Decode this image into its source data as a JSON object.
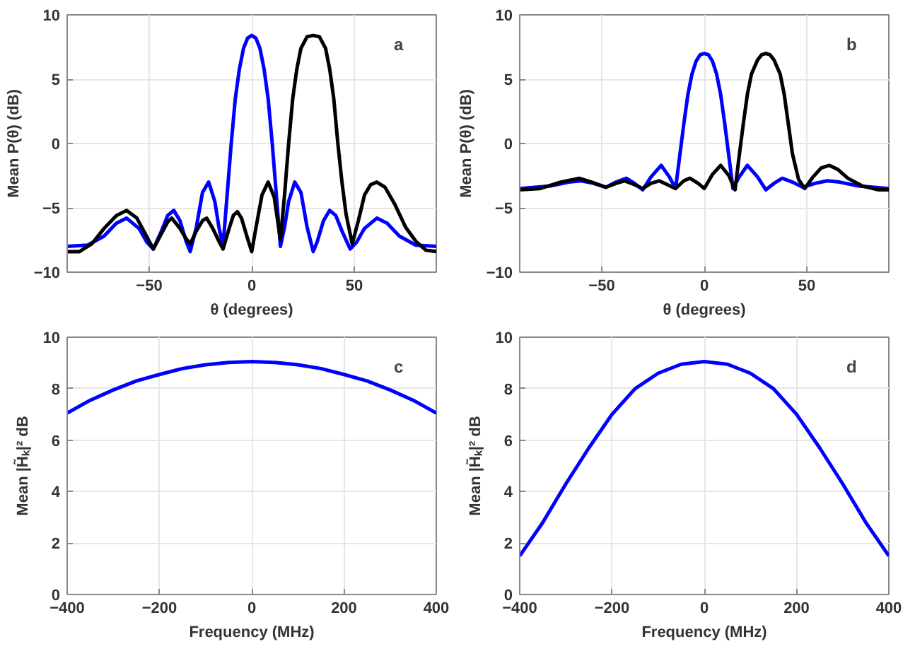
{
  "chart_data": [
    {
      "type": "line",
      "annotations": [
        "a"
      ],
      "xlabel": "θ (degrees)",
      "ylabel": "Mean P(θ) (dB)",
      "xlim": [
        -90,
        90
      ],
      "ylim": [
        -10,
        10
      ],
      "xticks": [
        -50,
        0,
        50
      ],
      "yticks": [
        -10,
        -5,
        0,
        5,
        10
      ],
      "grid": true,
      "series": [
        {
          "color": "#0000ff",
          "x": [
            -90,
            -80,
            -72,
            -66,
            -61,
            -55,
            -51,
            -48,
            -44,
            -41,
            -38,
            -35,
            -32,
            -30,
            -27,
            -24,
            -21,
            -18,
            -16,
            -14,
            -12,
            -10,
            -8,
            -6,
            -4,
            -2,
            0,
            2,
            4,
            6,
            8,
            10,
            12,
            14,
            16,
            18,
            21,
            24,
            27,
            30,
            32,
            35,
            38,
            41,
            44,
            48,
            51,
            55,
            61,
            66,
            72,
            80,
            90
          ],
          "values": [
            -8,
            -7.9,
            -7.2,
            -6.2,
            -5.8,
            -6.6,
            -7.7,
            -8.2,
            -6.8,
            -5.6,
            -5.2,
            -6,
            -7.6,
            -8.4,
            -6.5,
            -3.8,
            -3,
            -4.5,
            -6.5,
            -8,
            -4,
            0,
            3.5,
            5.8,
            7.4,
            8.2,
            8.4,
            8.2,
            7.4,
            5.8,
            3.5,
            0,
            -4,
            -8,
            -6.5,
            -4.5,
            -3,
            -3.8,
            -6.5,
            -8.4,
            -7.6,
            -6,
            -5.2,
            -5.6,
            -6.8,
            -8.2,
            -7.7,
            -6.6,
            -5.8,
            -6.2,
            -7.2,
            -7.9,
            -8
          ]
        },
        {
          "color": "#000000",
          "x": [
            -90,
            -84,
            -78,
            -72,
            -66,
            -61,
            -56,
            -52,
            -48,
            -44,
            -41,
            -39,
            -35,
            -32,
            -30,
            -27,
            -24,
            -22,
            -19,
            -16,
            -14,
            -11,
            -9,
            -7,
            -5,
            -2,
            0,
            2,
            5,
            8,
            11,
            14,
            16,
            18,
            20,
            22,
            24,
            27,
            30,
            33,
            36,
            38,
            40,
            42,
            44,
            46,
            49,
            52,
            55,
            58,
            61,
            65,
            70,
            75,
            80,
            85,
            90
          ],
          "values": [
            -8.4,
            -8.4,
            -7.8,
            -6.6,
            -5.6,
            -5.2,
            -5.8,
            -7,
            -8.2,
            -7,
            -6.1,
            -5.8,
            -6.6,
            -7.4,
            -7.8,
            -6.8,
            -6,
            -5.8,
            -6.6,
            -7.6,
            -8.2,
            -6.6,
            -5.6,
            -5.3,
            -5.8,
            -7.4,
            -8.4,
            -6.6,
            -4,
            -3,
            -4.2,
            -7.5,
            -4,
            0,
            3.5,
            5.8,
            7.4,
            8.3,
            8.4,
            8.3,
            7.4,
            5.8,
            3.5,
            0,
            -3,
            -5.5,
            -7.8,
            -6,
            -4,
            -3.2,
            -3,
            -3.4,
            -4.8,
            -6.5,
            -7.6,
            -8.3,
            -8.4
          ]
        }
      ]
    },
    {
      "type": "line",
      "annotations": [
        "b"
      ],
      "xlabel": "θ (degrees)",
      "ylabel": "Mean P(θ) (dB)",
      "xlim": [
        -90,
        90
      ],
      "ylim": [
        -10,
        10
      ],
      "xticks": [
        -50,
        0,
        50
      ],
      "yticks": [
        -10,
        -5,
        0,
        5,
        10
      ],
      "grid": true,
      "series": [
        {
          "color": "#0000ff",
          "x": [
            -90,
            -75,
            -66,
            -60,
            -54,
            -48,
            -43,
            -38,
            -34,
            -30,
            -26,
            -21,
            -17,
            -14,
            -12,
            -10,
            -8,
            -6,
            -4,
            -2,
            0,
            2,
            4,
            6,
            8,
            10,
            12,
            14,
            17,
            21,
            26,
            30,
            34,
            38,
            43,
            48,
            54,
            60,
            66,
            75,
            90
          ],
          "values": [
            -3.5,
            -3.3,
            -3,
            -2.9,
            -3.1,
            -3.4,
            -3,
            -2.7,
            -3.1,
            -3.6,
            -2.6,
            -1.7,
            -2.6,
            -3.5,
            -1,
            1.5,
            3.8,
            5.4,
            6.4,
            6.9,
            7,
            6.9,
            6.4,
            5.4,
            3.8,
            1.5,
            -1,
            -3.5,
            -2.6,
            -1.7,
            -2.6,
            -3.6,
            -3.1,
            -2.7,
            -3,
            -3.4,
            -3.1,
            -2.9,
            -3,
            -3.3,
            -3.5
          ]
        },
        {
          "color": "#000000",
          "x": [
            -90,
            -80,
            -70,
            -61,
            -55,
            -48,
            -43,
            -39,
            -34,
            -30,
            -26,
            -22,
            -18,
            -14,
            -10,
            -7,
            -3,
            0,
            4,
            8,
            12,
            15,
            17,
            19,
            21,
            23,
            26,
            28,
            30,
            32,
            34,
            37,
            39,
            41,
            43,
            46,
            49,
            53,
            57,
            61,
            65,
            70,
            77,
            85,
            90
          ],
          "values": [
            -3.6,
            -3.5,
            -3,
            -2.7,
            -3,
            -3.4,
            -3.1,
            -2.9,
            -3.2,
            -3.5,
            -3.1,
            -2.9,
            -3.2,
            -3.5,
            -2.9,
            -2.7,
            -3.1,
            -3.5,
            -2.4,
            -1.7,
            -2.5,
            -3.6,
            -1,
            1.5,
            3.8,
            5.4,
            6.5,
            6.9,
            7,
            6.9,
            6.5,
            5.4,
            3.8,
            1.5,
            -0.8,
            -2.8,
            -3.5,
            -2.6,
            -1.9,
            -1.7,
            -2,
            -2.7,
            -3.3,
            -3.6,
            -3.6
          ]
        }
      ]
    },
    {
      "type": "line",
      "annotations": [
        "c"
      ],
      "xlabel": "Frequency (MHz)",
      "ylabel": "Mean |H̃ₖ|² dB",
      "xlim": [
        -400,
        400
      ],
      "ylim": [
        0,
        10
      ],
      "xticks": [
        -400,
        -200,
        0,
        200,
        400
      ],
      "yticks": [
        0,
        2,
        4,
        6,
        8,
        10
      ],
      "grid": true,
      "series": [
        {
          "color": "#0000ff",
          "x": [
            -400,
            -350,
            -300,
            -250,
            -200,
            -150,
            -100,
            -50,
            0,
            50,
            100,
            150,
            200,
            250,
            300,
            350,
            400
          ],
          "values": [
            7.05,
            7.55,
            7.95,
            8.3,
            8.55,
            8.78,
            8.93,
            9.02,
            9.05,
            9.02,
            8.93,
            8.78,
            8.55,
            8.3,
            7.95,
            7.55,
            7.05
          ]
        }
      ]
    },
    {
      "type": "line",
      "annotations": [
        "d"
      ],
      "xlabel": "Frequency (MHz)",
      "ylabel": "Mean |H̃ₖ|² dB",
      "xlim": [
        -400,
        400
      ],
      "ylim": [
        0,
        10
      ],
      "xticks": [
        -400,
        -200,
        0,
        200,
        400
      ],
      "yticks": [
        0,
        2,
        4,
        6,
        8,
        10
      ],
      "grid": true,
      "series": [
        {
          "color": "#0000ff",
          "x": [
            -400,
            -350,
            -300,
            -250,
            -200,
            -150,
            -100,
            -50,
            0,
            50,
            100,
            150,
            200,
            250,
            300,
            350,
            400
          ],
          "values": [
            1.5,
            2.8,
            4.3,
            5.7,
            7.0,
            8.0,
            8.6,
            8.95,
            9.05,
            8.95,
            8.6,
            8.0,
            7.0,
            5.7,
            4.3,
            2.8,
            1.5
          ]
        }
      ]
    }
  ]
}
